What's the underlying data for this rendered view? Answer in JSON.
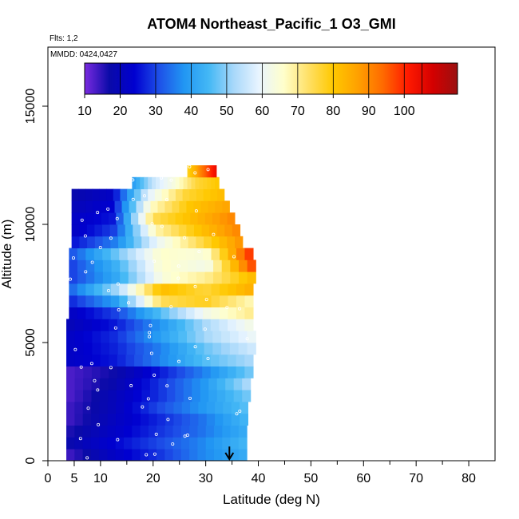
{
  "chart_data": {
    "type": "heatmap",
    "title": "ATOM4 Northeast_Pacific_1 O3_GMI",
    "subtitle_flights": "Flts: 1,2",
    "subtitle_dates": "MMDD: 0424,0427",
    "xlabel": "Latitude (deg N)",
    "ylabel": "Altitude (m)",
    "xlim": [
      0,
      85
    ],
    "ylim": [
      0,
      17500
    ],
    "x_ticks": [
      0,
      5,
      10,
      20,
      30,
      40,
      50,
      60,
      70,
      80
    ],
    "x_tick_labels": [
      "0",
      "5",
      "10",
      "20",
      "30",
      "40",
      "50",
      "60",
      "70",
      "80"
    ],
    "y_ticks": [
      0,
      5000,
      10000,
      15000
    ],
    "y_tick_labels": [
      "0",
      "5000",
      "10000",
      "15000"
    ],
    "colorbar": {
      "min": 10,
      "max": 115,
      "tick_values": [
        10,
        20,
        30,
        40,
        50,
        60,
        70,
        80,
        90,
        100
      ],
      "tick_labels": [
        "10",
        "20",
        "30",
        "40",
        "50",
        "60",
        "70",
        "80",
        "90",
        "100"
      ],
      "colors": [
        "#7a2be0",
        "#0a0aa8",
        "#0000d0",
        "#1e50e8",
        "#2196f3",
        "#44b8f5",
        "#a8d8fa",
        "#e8f4ff",
        "#ffffcc",
        "#ffe066",
        "#ffc800",
        "#ffa000",
        "#ff6a00",
        "#ff1a00",
        "#d40000",
        "#9a1010"
      ],
      "separators": [
        20,
        30,
        40,
        50,
        60,
        70,
        80,
        90,
        100,
        105
      ]
    },
    "layers": [
      {
        "alt": [
          0,
          500
        ],
        "lat": [
          3.5,
          37.8
        ],
        "values": [
          14,
          22,
          28,
          36,
          42
        ]
      },
      {
        "alt": [
          500,
          1000
        ],
        "lat": [
          3.5,
          37.8
        ],
        "values": [
          18,
          24,
          30,
          36,
          44
        ]
      },
      {
        "alt": [
          1000,
          1500
        ],
        "lat": [
          3.5,
          37.8
        ],
        "values": [
          16,
          22,
          28,
          34,
          42
        ]
      },
      {
        "alt": [
          1500,
          2000
        ],
        "lat": [
          3.5,
          38.0
        ],
        "values": [
          14,
          21,
          27,
          34,
          44
        ]
      },
      {
        "alt": [
          2000,
          2500
        ],
        "lat": [
          3.5,
          38.0
        ],
        "values": [
          14,
          20,
          30,
          38,
          46
        ]
      },
      {
        "alt": [
          2500,
          3000
        ],
        "lat": [
          3.5,
          38.5
        ],
        "values": [
          13,
          20,
          28,
          38,
          48
        ]
      },
      {
        "alt": [
          3000,
          3500
        ],
        "lat": [
          3.5,
          38.5
        ],
        "values": [
          13,
          18,
          28,
          38,
          52
        ]
      },
      {
        "alt": [
          3500,
          4000
        ],
        "lat": [
          3.5,
          39.0
        ],
        "values": [
          13,
          17,
          26,
          36,
          48
        ]
      },
      {
        "alt": [
          4000,
          4500
        ],
        "lat": [
          3.5,
          39.0
        ],
        "values": [
          22,
          26,
          36,
          46,
          52
        ]
      },
      {
        "alt": [
          4500,
          5000
        ],
        "lat": [
          3.5,
          39.5
        ],
        "values": [
          22,
          27,
          36,
          48,
          56
        ]
      },
      {
        "alt": [
          5000,
          5500
        ],
        "lat": [
          3.5,
          39.5
        ],
        "values": [
          22,
          28,
          40,
          52,
          60
        ]
      },
      {
        "alt": [
          5500,
          6000
        ],
        "lat": [
          3.5,
          39.0
        ],
        "values": [
          20,
          26,
          38,
          52,
          62
        ]
      },
      {
        "alt": [
          6000,
          6500
        ],
        "lat": [
          4.0,
          39.0
        ],
        "values": [
          22,
          30,
          46,
          62,
          70
        ]
      },
      {
        "alt": [
          6500,
          7000
        ],
        "lat": [
          4.0,
          39.0
        ],
        "values": [
          28,
          40,
          74,
          78,
          68
        ]
      },
      {
        "alt": [
          7000,
          7500
        ],
        "lat": [
          4.0,
          39.0
        ],
        "values": [
          34,
          52,
          82,
          76,
          84
        ]
      },
      {
        "alt": [
          7500,
          8000
        ],
        "lat": [
          4.0,
          39.5
        ],
        "values": [
          30,
          42,
          64,
          70,
          82
        ]
      },
      {
        "alt": [
          8000,
          8500
        ],
        "lat": [
          4.0,
          39.5
        ],
        "values": [
          30,
          44,
          66,
          62,
          96
        ]
      },
      {
        "alt": [
          8500,
          9000
        ],
        "lat": [
          4.0,
          39.0
        ],
        "values": [
          32,
          48,
          66,
          64,
          98
        ]
      },
      {
        "alt": [
          9000,
          9500
        ],
        "lat": [
          4.5,
          37.0
        ],
        "values": [
          26,
          36,
          60,
          74,
          88
        ]
      },
      {
        "alt": [
          9500,
          10000
        ],
        "lat": [
          4.5,
          36.5
        ],
        "values": [
          22,
          30,
          68,
          80,
          90
        ]
      },
      {
        "alt": [
          10000,
          10500
        ],
        "lat": [
          4.5,
          35.5
        ],
        "values": [
          22,
          26,
          74,
          82,
          90
        ]
      },
      {
        "alt": [
          10500,
          11000
        ],
        "lat": [
          4.5,
          34.5
        ],
        "values": [
          20,
          24,
          66,
          80,
          86
        ]
      },
      {
        "alt": [
          11000,
          11500
        ],
        "lat": [
          4.5,
          33.5
        ],
        "values": [
          18,
          22,
          58,
          76,
          82
        ]
      },
      {
        "alt": [
          11500,
          12000
        ],
        "lat": [
          16.0,
          32.5
        ],
        "values": [
          40,
          56,
          64,
          76,
          80
        ]
      },
      {
        "alt": [
          12000,
          12500
        ],
        "lat": [
          26.5,
          32.0
        ],
        "values": [
          78,
          84,
          92,
          98,
          104
        ]
      }
    ],
    "annotation": {
      "type": "arrow-down",
      "lat": 34.5,
      "alt_top": 600,
      "alt_bottom": 0
    }
  }
}
